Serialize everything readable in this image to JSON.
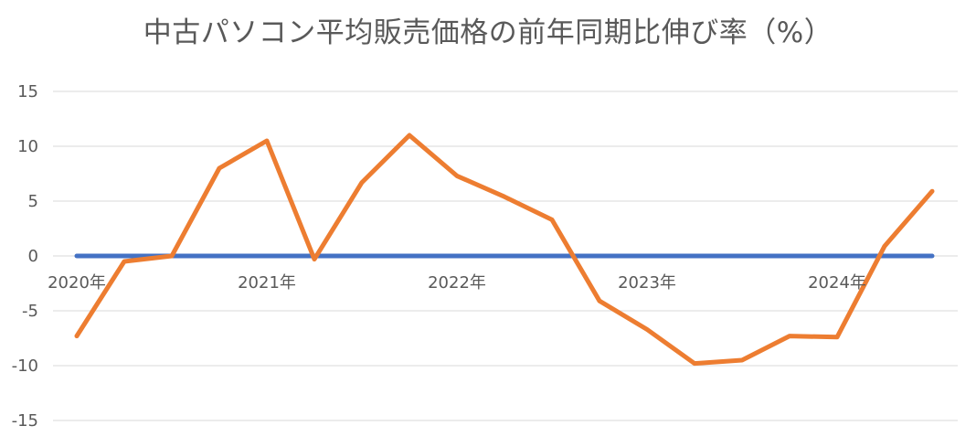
{
  "chart_data": {
    "type": "line",
    "title": "中古パソコン平均販売価格の前年同期比伸び率（%）",
    "xlabel": "",
    "ylabel": "",
    "ylim": [
      -15,
      15
    ],
    "yticks": [
      15,
      10,
      5,
      0,
      -5,
      -10,
      -15
    ],
    "ytick_labels": [
      "15",
      "10",
      "5",
      "0",
      "-5",
      "-10",
      "-15"
    ],
    "x_tick_labels": [
      "2020年",
      "2021年",
      "2022年",
      "2023年",
      "2024年"
    ],
    "grid": true,
    "legend": "none",
    "series": [
      {
        "color": "#4472C4",
        "values": [
          0,
          0,
          0,
          0,
          0,
          0,
          0,
          0,
          0,
          0,
          0,
          0,
          0,
          0,
          0,
          0,
          0,
          0,
          0
        ]
      },
      {
        "color": "#ED7D31",
        "values": [
          -7.3,
          -0.5,
          0,
          8.0,
          10.5,
          -0.3,
          6.7,
          11.0,
          7.3,
          5.4,
          3.3,
          -4.1,
          -6.7,
          -9.8,
          -9.5,
          -7.3,
          -7.4,
          0.9,
          5.9
        ]
      }
    ]
  }
}
